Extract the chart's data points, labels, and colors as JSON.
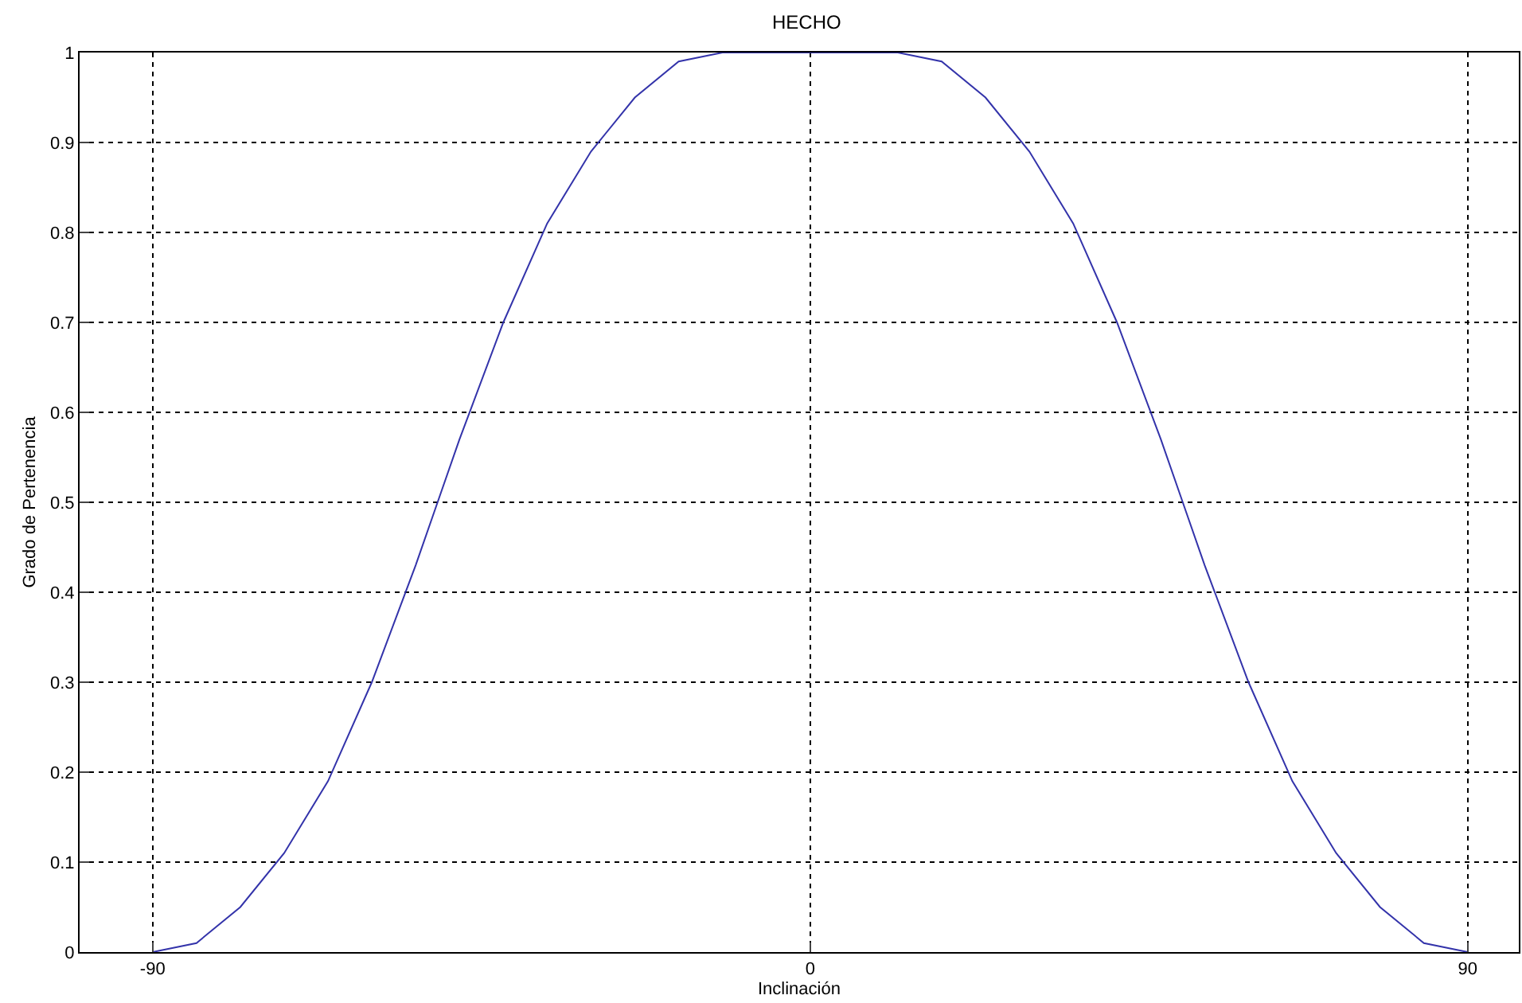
{
  "chart_data": {
    "type": "line",
    "title": "HECHO",
    "xlabel": "Inclinación",
    "ylabel": "Grado de Pertenencia",
    "x": [
      -90,
      -84,
      -78,
      -72,
      -66,
      -60,
      -54,
      -51,
      -48,
      -42,
      -36,
      -30,
      -24,
      -18,
      -12,
      12,
      18,
      24,
      30,
      36,
      42,
      48,
      51,
      54,
      60,
      66,
      72,
      78,
      84,
      90
    ],
    "series": [
      {
        "color": "#3333aa",
        "values": [
          0,
          0.01,
          0.05,
          0.11,
          0.19,
          0.3,
          0.43,
          0.5,
          0.57,
          0.7,
          0.81,
          0.89,
          0.95,
          0.99,
          1,
          1,
          0.99,
          0.95,
          0.89,
          0.81,
          0.7,
          0.57,
          0.5,
          0.43,
          0.3,
          0.19,
          0.11,
          0.05,
          0.01,
          0
        ]
      }
    ],
    "xlim": [
      -100,
      97
    ],
    "xticks": [
      -90,
      0,
      90
    ],
    "ylim": [
      0,
      1
    ],
    "yticks": [
      0,
      0.1,
      0.2,
      0.3,
      0.4,
      0.5,
      0.6,
      0.7,
      0.8,
      0.9,
      1
    ],
    "grid": true,
    "marker": "none",
    "line_style": "solid"
  }
}
